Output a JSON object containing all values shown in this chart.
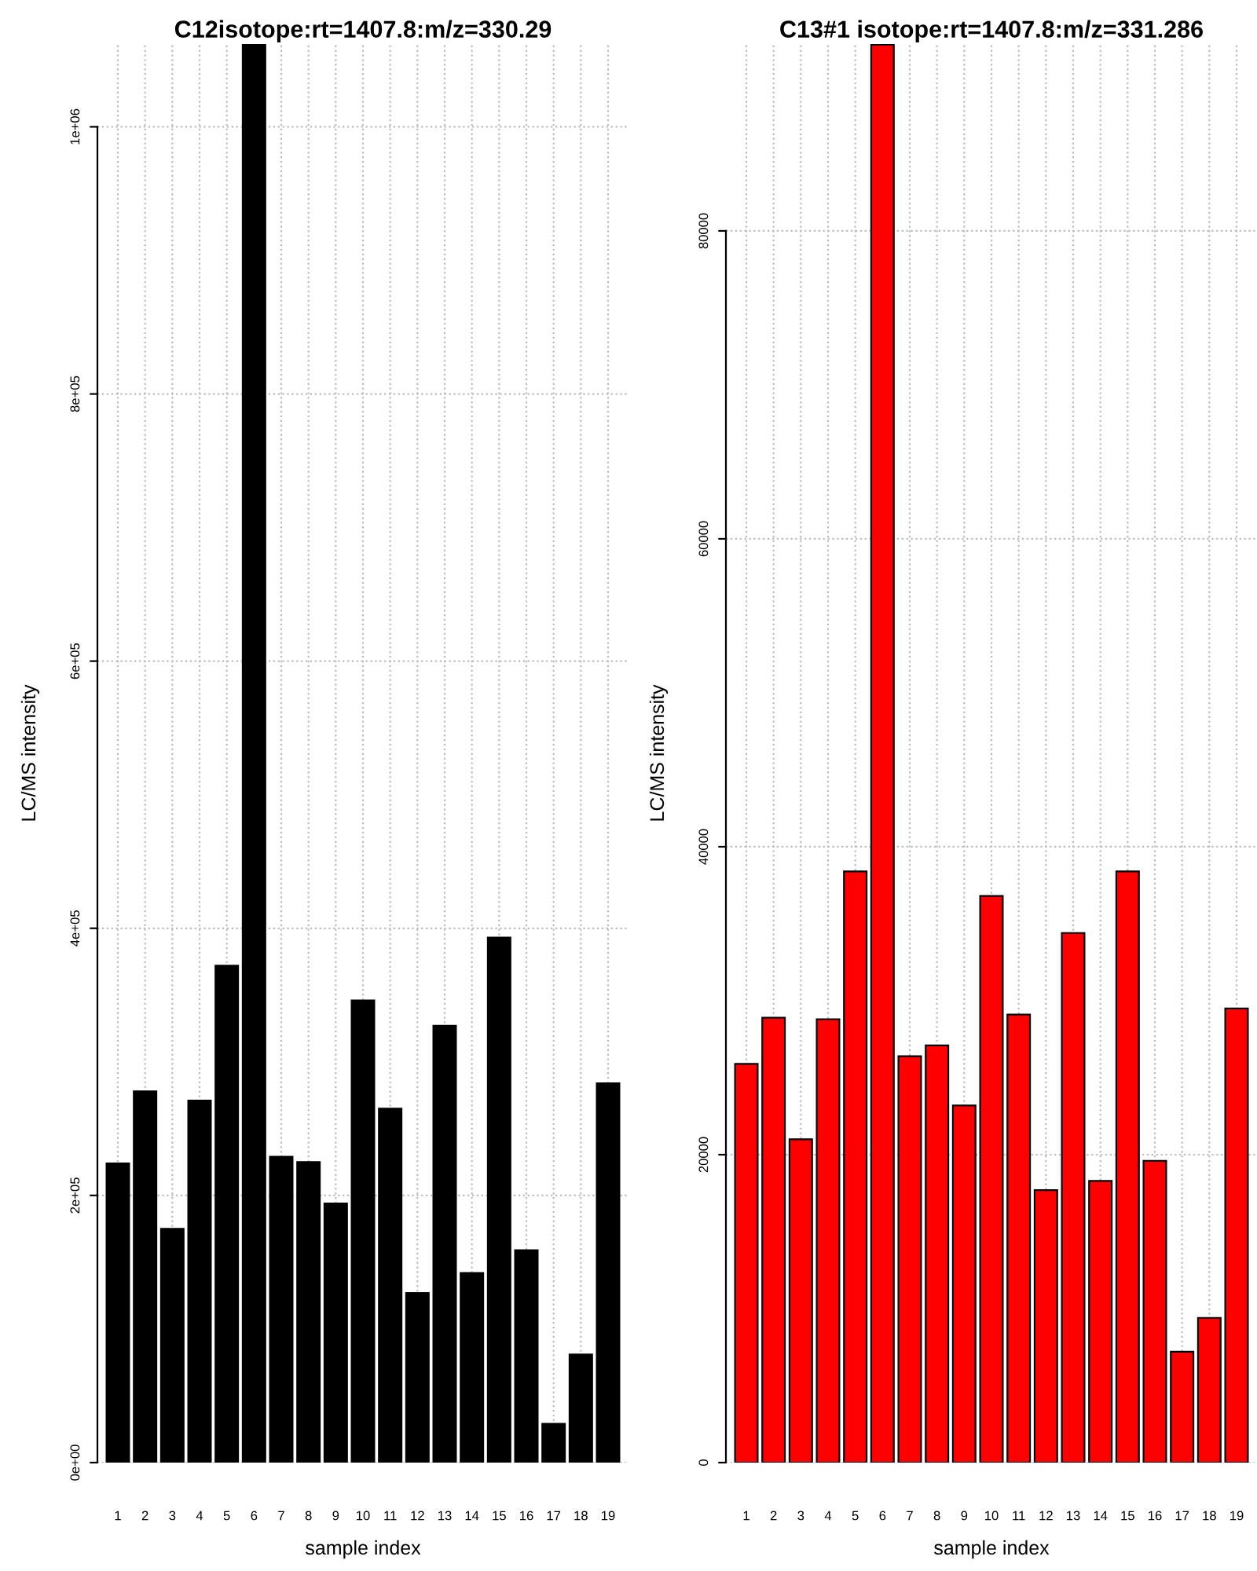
{
  "chart_data": [
    {
      "type": "bar",
      "title": "C12isotope:rt=1407.8:m/z=330.29",
      "xlabel": "sample index",
      "ylabel": "LC/MS intensity",
      "categories": [
        "1",
        "2",
        "3",
        "4",
        "5",
        "6",
        "7",
        "8",
        "9",
        "10",
        "11",
        "12",
        "13",
        "14",
        "15",
        "16",
        "17",
        "18",
        "19"
      ],
      "values": [
        224000,
        278000,
        175000,
        271000,
        372000,
        1062000,
        229000,
        225000,
        194000,
        346000,
        265000,
        127000,
        327000,
        142000,
        393000,
        159000,
        29000,
        81000,
        284000
      ],
      "color": "#000000",
      "ylim": [
        0,
        1062000
      ],
      "yticks": [
        {
          "value": 0,
          "label": "0e+00"
        },
        {
          "value": 200000,
          "label": "2e+05"
        },
        {
          "value": 400000,
          "label": "4e+05"
        },
        {
          "value": 600000,
          "label": "6e+05"
        },
        {
          "value": 800000,
          "label": "8e+05"
        },
        {
          "value": 1000000,
          "label": "1e+06"
        }
      ],
      "grid": true
    },
    {
      "type": "bar",
      "title": "C13#1 isotope:rt=1407.8:m/z=331.286",
      "xlabel": "sample index",
      "ylabel": "LC/MS intensity",
      "categories": [
        "1",
        "2",
        "3",
        "4",
        "5",
        "6",
        "7",
        "8",
        "9",
        "10",
        "11",
        "12",
        "13",
        "14",
        "15",
        "16",
        "17",
        "18",
        "19"
      ],
      "values": [
        25900,
        28900,
        21000,
        28800,
        38400,
        92100,
        26400,
        27100,
        23200,
        36800,
        29100,
        17700,
        34400,
        18300,
        38400,
        19600,
        7200,
        9400,
        29500
      ],
      "color": "#ff0000",
      "ylim": [
        0,
        92140
      ],
      "yticks": [
        0,
        20000,
        40000,
        60000,
        80000
      ],
      "grid": true
    }
  ]
}
